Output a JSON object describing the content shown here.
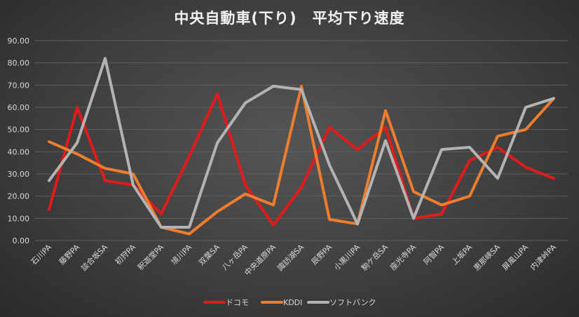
{
  "chart_data": {
    "type": "line",
    "title": "中央自動車(下り)　平均下り速度",
    "xlabel": "",
    "ylabel": "",
    "ylim": [
      0,
      90
    ],
    "yticks": [
      "0.00",
      "10.00",
      "20.00",
      "30.00",
      "40.00",
      "50.00",
      "60.00",
      "70.00",
      "80.00",
      "90.00"
    ],
    "grid": true,
    "legend_position": "bottom",
    "categories": [
      "石川PA",
      "藤野PA",
      "談合坂SA",
      "初狩PA",
      "釈迦堂PA",
      "境川PA",
      "双葉SA",
      "八ヶ岳PA",
      "中央道原PA",
      "諏訪湖SA",
      "辰野PA",
      "小黒川PA",
      "駒ケ岳SA",
      "座光寺PA",
      "阿智PA",
      "上坂PA",
      "恵那峡SA",
      "屏風山PA",
      "内津峠PA"
    ],
    "series": [
      {
        "name": "ドコモ",
        "color": "#e01b1b",
        "values": [
          14,
          60,
          27,
          25,
          12,
          38,
          66,
          25,
          7,
          24,
          51,
          41,
          51,
          10,
          12,
          36,
          42,
          33,
          28
        ]
      },
      {
        "name": "KDDI",
        "color": "#ee7d2e",
        "values": [
          44.5,
          39,
          32.5,
          30,
          6,
          3,
          13,
          21,
          16,
          69.5,
          9.5,
          7.5,
          58.5,
          22,
          16,
          20,
          47,
          50,
          64
        ]
      },
      {
        "name": "ソフトバンク",
        "color": "#b3b3b3",
        "values": [
          27,
          44,
          82,
          25,
          6,
          6,
          44,
          62,
          69.5,
          68,
          34,
          7.5,
          45,
          10,
          41,
          42,
          28,
          60,
          64
        ]
      }
    ]
  }
}
